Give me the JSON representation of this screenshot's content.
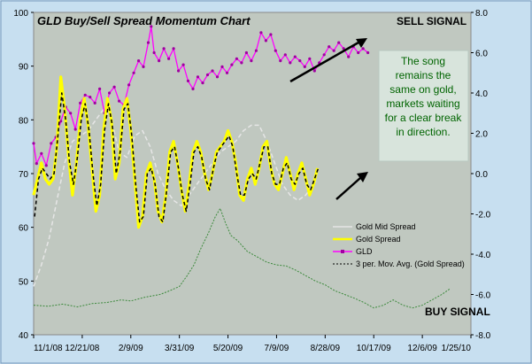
{
  "chart_data": {
    "type": "line",
    "title": "GLD Buy/Sell Spread Momentum Chart",
    "x_tick_labels": [
      "11/1/08",
      "12/21/08",
      "2/9/09",
      "3/31/09",
      "5/20/09",
      "7/9/09",
      "8/28/09",
      "10/17/09",
      "12/6/09",
      "1/25/10"
    ],
    "left_axis": {
      "min": 40,
      "max": 100,
      "ticks": [
        40,
        50,
        60,
        70,
        80,
        90,
        100
      ]
    },
    "right_axis": {
      "min": -8.0,
      "max": 8.0,
      "ticks": [
        "-8.0",
        "-6.0",
        "-4.0",
        "-2.0",
        "0.0",
        "2.0",
        "4.0",
        "6.0",
        "8.0"
      ]
    },
    "x_domain": [
      0,
      450
    ],
    "legend": {
      "position": "bottom-right",
      "entries": [
        "Gold Mid Spread",
        "Gold  Spread",
        "GLD",
        "3 per. Mov. Avg. (Gold  Spread)"
      ]
    },
    "series": [
      {
        "name": "GLD",
        "axis": "right",
        "color": "#ff00ff",
        "points": [
          [
            0,
            1.5
          ],
          [
            3,
            0.5
          ],
          [
            8,
            1.0
          ],
          [
            13,
            0.4
          ],
          [
            18,
            1.5
          ],
          [
            23,
            1.8
          ],
          [
            28,
            2.6
          ],
          [
            33,
            3.3
          ],
          [
            38,
            3.0
          ],
          [
            43,
            2.2
          ],
          [
            48,
            3.5
          ],
          [
            53,
            3.9
          ],
          [
            58,
            3.8
          ],
          [
            63,
            3.5
          ],
          [
            68,
            4.2
          ],
          [
            73,
            3.0
          ],
          [
            78,
            4.0
          ],
          [
            83,
            4.3
          ],
          [
            88,
            3.6
          ],
          [
            93,
            3.4
          ],
          [
            98,
            4.4
          ],
          [
            103,
            5.0
          ],
          [
            108,
            5.6
          ],
          [
            113,
            5.3
          ],
          [
            118,
            6.5
          ],
          [
            121,
            7.3
          ],
          [
            124,
            6.0
          ],
          [
            129,
            5.6
          ],
          [
            134,
            6.2
          ],
          [
            139,
            5.7
          ],
          [
            144,
            6.2
          ],
          [
            149,
            5.1
          ],
          [
            154,
            5.4
          ],
          [
            159,
            4.6
          ],
          [
            164,
            4.2
          ],
          [
            169,
            4.8
          ],
          [
            174,
            4.5
          ],
          [
            179,
            4.9
          ],
          [
            184,
            5.1
          ],
          [
            189,
            4.8
          ],
          [
            194,
            5.3
          ],
          [
            199,
            5.0
          ],
          [
            204,
            5.4
          ],
          [
            209,
            5.7
          ],
          [
            214,
            5.5
          ],
          [
            219,
            6.0
          ],
          [
            224,
            5.6
          ],
          [
            229,
            6.1
          ],
          [
            234,
            7.0
          ],
          [
            239,
            6.6
          ],
          [
            244,
            6.9
          ],
          [
            249,
            6.1
          ],
          [
            254,
            5.6
          ],
          [
            259,
            5.9
          ],
          [
            264,
            5.5
          ],
          [
            269,
            5.8
          ],
          [
            274,
            5.6
          ],
          [
            279,
            5.3
          ],
          [
            284,
            5.7
          ],
          [
            289,
            5.1
          ],
          [
            294,
            5.5
          ],
          [
            299,
            5.9
          ],
          [
            304,
            6.3
          ],
          [
            309,
            6.1
          ],
          [
            314,
            6.5
          ],
          [
            319,
            6.2
          ],
          [
            324,
            5.8
          ],
          [
            329,
            6.3
          ],
          [
            334,
            6.0
          ],
          [
            339,
            6.2
          ],
          [
            344,
            6.0
          ]
        ]
      },
      {
        "name": "Gold  Spread",
        "axis": "left",
        "color": "#ffff00",
        "points": [
          [
            0,
            66
          ],
          [
            4,
            69
          ],
          [
            8,
            72
          ],
          [
            12,
            69
          ],
          [
            16,
            68
          ],
          [
            20,
            69
          ],
          [
            24,
            75
          ],
          [
            28,
            88
          ],
          [
            32,
            82
          ],
          [
            36,
            73
          ],
          [
            40,
            66
          ],
          [
            44,
            72
          ],
          [
            48,
            80
          ],
          [
            52,
            84
          ],
          [
            56,
            79
          ],
          [
            60,
            71
          ],
          [
            64,
            63
          ],
          [
            68,
            66
          ],
          [
            72,
            78
          ],
          [
            76,
            84
          ],
          [
            80,
            80
          ],
          [
            84,
            69
          ],
          [
            88,
            72
          ],
          [
            92,
            82
          ],
          [
            96,
            84
          ],
          [
            100,
            78
          ],
          [
            104,
            69
          ],
          [
            108,
            60
          ],
          [
            112,
            62
          ],
          [
            116,
            70
          ],
          [
            120,
            72
          ],
          [
            124,
            69
          ],
          [
            128,
            63
          ],
          [
            132,
            61
          ],
          [
            136,
            66
          ],
          [
            140,
            74
          ],
          [
            144,
            76
          ],
          [
            148,
            72
          ],
          [
            152,
            67
          ],
          [
            156,
            63
          ],
          [
            160,
            68
          ],
          [
            164,
            74
          ],
          [
            168,
            76
          ],
          [
            172,
            74
          ],
          [
            176,
            70
          ],
          [
            180,
            67
          ],
          [
            184,
            70
          ],
          [
            188,
            74
          ],
          [
            192,
            75
          ],
          [
            196,
            76
          ],
          [
            200,
            78
          ],
          [
            204,
            76
          ],
          [
            208,
            72
          ],
          [
            212,
            66
          ],
          [
            216,
            65
          ],
          [
            220,
            69
          ],
          [
            224,
            71
          ],
          [
            228,
            68
          ],
          [
            232,
            71
          ],
          [
            236,
            75
          ],
          [
            240,
            76
          ],
          [
            244,
            71
          ],
          [
            248,
            68
          ],
          [
            252,
            67
          ],
          [
            256,
            70
          ],
          [
            260,
            73
          ],
          [
            264,
            70
          ],
          [
            268,
            67
          ],
          [
            272,
            70
          ],
          [
            276,
            72
          ],
          [
            280,
            69
          ],
          [
            284,
            66
          ],
          [
            288,
            68
          ],
          [
            292,
            71
          ]
        ]
      },
      {
        "name": "3 per. Mov. Avg. (Gold  Spread)",
        "axis": "left",
        "color": "#000000",
        "points": [
          [
            1,
            62
          ],
          [
            5,
            69
          ],
          [
            9,
            71
          ],
          [
            13,
            70
          ],
          [
            17,
            69
          ],
          [
            21,
            70
          ],
          [
            25,
            77
          ],
          [
            29,
            85
          ],
          [
            33,
            80
          ],
          [
            37,
            72
          ],
          [
            41,
            68
          ],
          [
            45,
            73
          ],
          [
            49,
            80
          ],
          [
            53,
            83
          ],
          [
            57,
            78
          ],
          [
            61,
            70
          ],
          [
            65,
            64
          ],
          [
            69,
            68
          ],
          [
            73,
            78
          ],
          [
            77,
            83
          ],
          [
            81,
            79
          ],
          [
            85,
            70
          ],
          [
            89,
            74
          ],
          [
            93,
            82
          ],
          [
            97,
            83
          ],
          [
            101,
            77
          ],
          [
            105,
            68
          ],
          [
            109,
            61
          ],
          [
            113,
            62
          ],
          [
            117,
            70
          ],
          [
            121,
            71
          ],
          [
            125,
            68
          ],
          [
            129,
            62
          ],
          [
            133,
            61
          ],
          [
            137,
            67
          ],
          [
            141,
            74
          ],
          [
            145,
            75
          ],
          [
            149,
            71
          ],
          [
            153,
            66
          ],
          [
            157,
            63
          ],
          [
            161,
            68
          ],
          [
            165,
            74
          ],
          [
            169,
            75
          ],
          [
            173,
            73
          ],
          [
            177,
            69
          ],
          [
            181,
            67
          ],
          [
            185,
            71
          ],
          [
            189,
            74
          ],
          [
            193,
            75
          ],
          [
            197,
            76
          ],
          [
            201,
            77
          ],
          [
            205,
            75
          ],
          [
            209,
            70
          ],
          [
            213,
            66
          ],
          [
            217,
            66
          ],
          [
            221,
            69
          ],
          [
            225,
            70
          ],
          [
            229,
            69
          ],
          [
            233,
            72
          ],
          [
            237,
            75
          ],
          [
            241,
            75
          ],
          [
            245,
            70
          ],
          [
            249,
            68
          ],
          [
            253,
            68
          ],
          [
            257,
            71
          ],
          [
            261,
            72
          ],
          [
            265,
            69
          ],
          [
            269,
            68
          ],
          [
            273,
            70
          ],
          [
            277,
            71
          ],
          [
            281,
            68
          ],
          [
            285,
            67
          ],
          [
            289,
            69
          ],
          [
            293,
            71
          ]
        ]
      },
      {
        "name": "Gold Mid Spread",
        "axis": "left",
        "color": "#e6e6e6",
        "points": [
          [
            0,
            49
          ],
          [
            8,
            53
          ],
          [
            16,
            58
          ],
          [
            24,
            65
          ],
          [
            32,
            72
          ],
          [
            40,
            76
          ],
          [
            48,
            77
          ],
          [
            56,
            78
          ],
          [
            64,
            80
          ],
          [
            72,
            82
          ],
          [
            80,
            80
          ],
          [
            88,
            74
          ],
          [
            96,
            73
          ],
          [
            104,
            77
          ],
          [
            112,
            78
          ],
          [
            120,
            75
          ],
          [
            128,
            70
          ],
          [
            136,
            67
          ],
          [
            144,
            65
          ],
          [
            152,
            64
          ],
          [
            160,
            66
          ],
          [
            168,
            68
          ],
          [
            176,
            70
          ],
          [
            184,
            72
          ],
          [
            192,
            74
          ],
          [
            200,
            75
          ],
          [
            208,
            76
          ],
          [
            216,
            78
          ],
          [
            224,
            79
          ],
          [
            232,
            79
          ],
          [
            240,
            76
          ],
          [
            248,
            72
          ],
          [
            256,
            68
          ],
          [
            264,
            66
          ],
          [
            272,
            65
          ],
          [
            280,
            66
          ],
          [
            288,
            68
          ],
          [
            292,
            69
          ]
        ]
      },
      {
        "name": "Buy/Sell momentum (unlabeled)",
        "axis": "left",
        "color": "#3d8a3d",
        "points": [
          [
            0,
            45.5
          ],
          [
            15,
            45.3
          ],
          [
            30,
            45.7
          ],
          [
            45,
            45.2
          ],
          [
            60,
            45.8
          ],
          [
            75,
            46.0
          ],
          [
            90,
            46.5
          ],
          [
            100,
            46.3
          ],
          [
            115,
            47.0
          ],
          [
            130,
            47.5
          ],
          [
            140,
            48.2
          ],
          [
            150,
            49.0
          ],
          [
            158,
            51.0
          ],
          [
            165,
            53.0
          ],
          [
            172,
            56.0
          ],
          [
            180,
            59.0
          ],
          [
            187,
            62.0
          ],
          [
            192,
            63.5
          ],
          [
            197,
            61.0
          ],
          [
            203,
            58.5
          ],
          [
            210,
            57.5
          ],
          [
            220,
            55.5
          ],
          [
            230,
            54.5
          ],
          [
            240,
            53.5
          ],
          [
            250,
            53.0
          ],
          [
            260,
            52.8
          ],
          [
            270,
            52.0
          ],
          [
            280,
            51.0
          ],
          [
            290,
            50.0
          ],
          [
            300,
            49.3
          ],
          [
            310,
            48.2
          ],
          [
            320,
            47.5
          ],
          [
            330,
            46.8
          ],
          [
            340,
            46.0
          ],
          [
            350,
            45.0
          ],
          [
            360,
            45.5
          ],
          [
            370,
            46.5
          ],
          [
            380,
            45.5
          ],
          [
            390,
            45.0
          ],
          [
            400,
            45.5
          ],
          [
            410,
            46.5
          ],
          [
            420,
            47.5
          ],
          [
            428,
            48.5
          ]
        ]
      }
    ],
    "annotations": {
      "sell_signal": "SELL SIGNAL",
      "buy_signal": "BUY SIGNAL",
      "note_lines": [
        "The song",
        "remains the",
        "same on gold,",
        "markets waiting",
        "for a clear break",
        "in direction."
      ]
    }
  }
}
